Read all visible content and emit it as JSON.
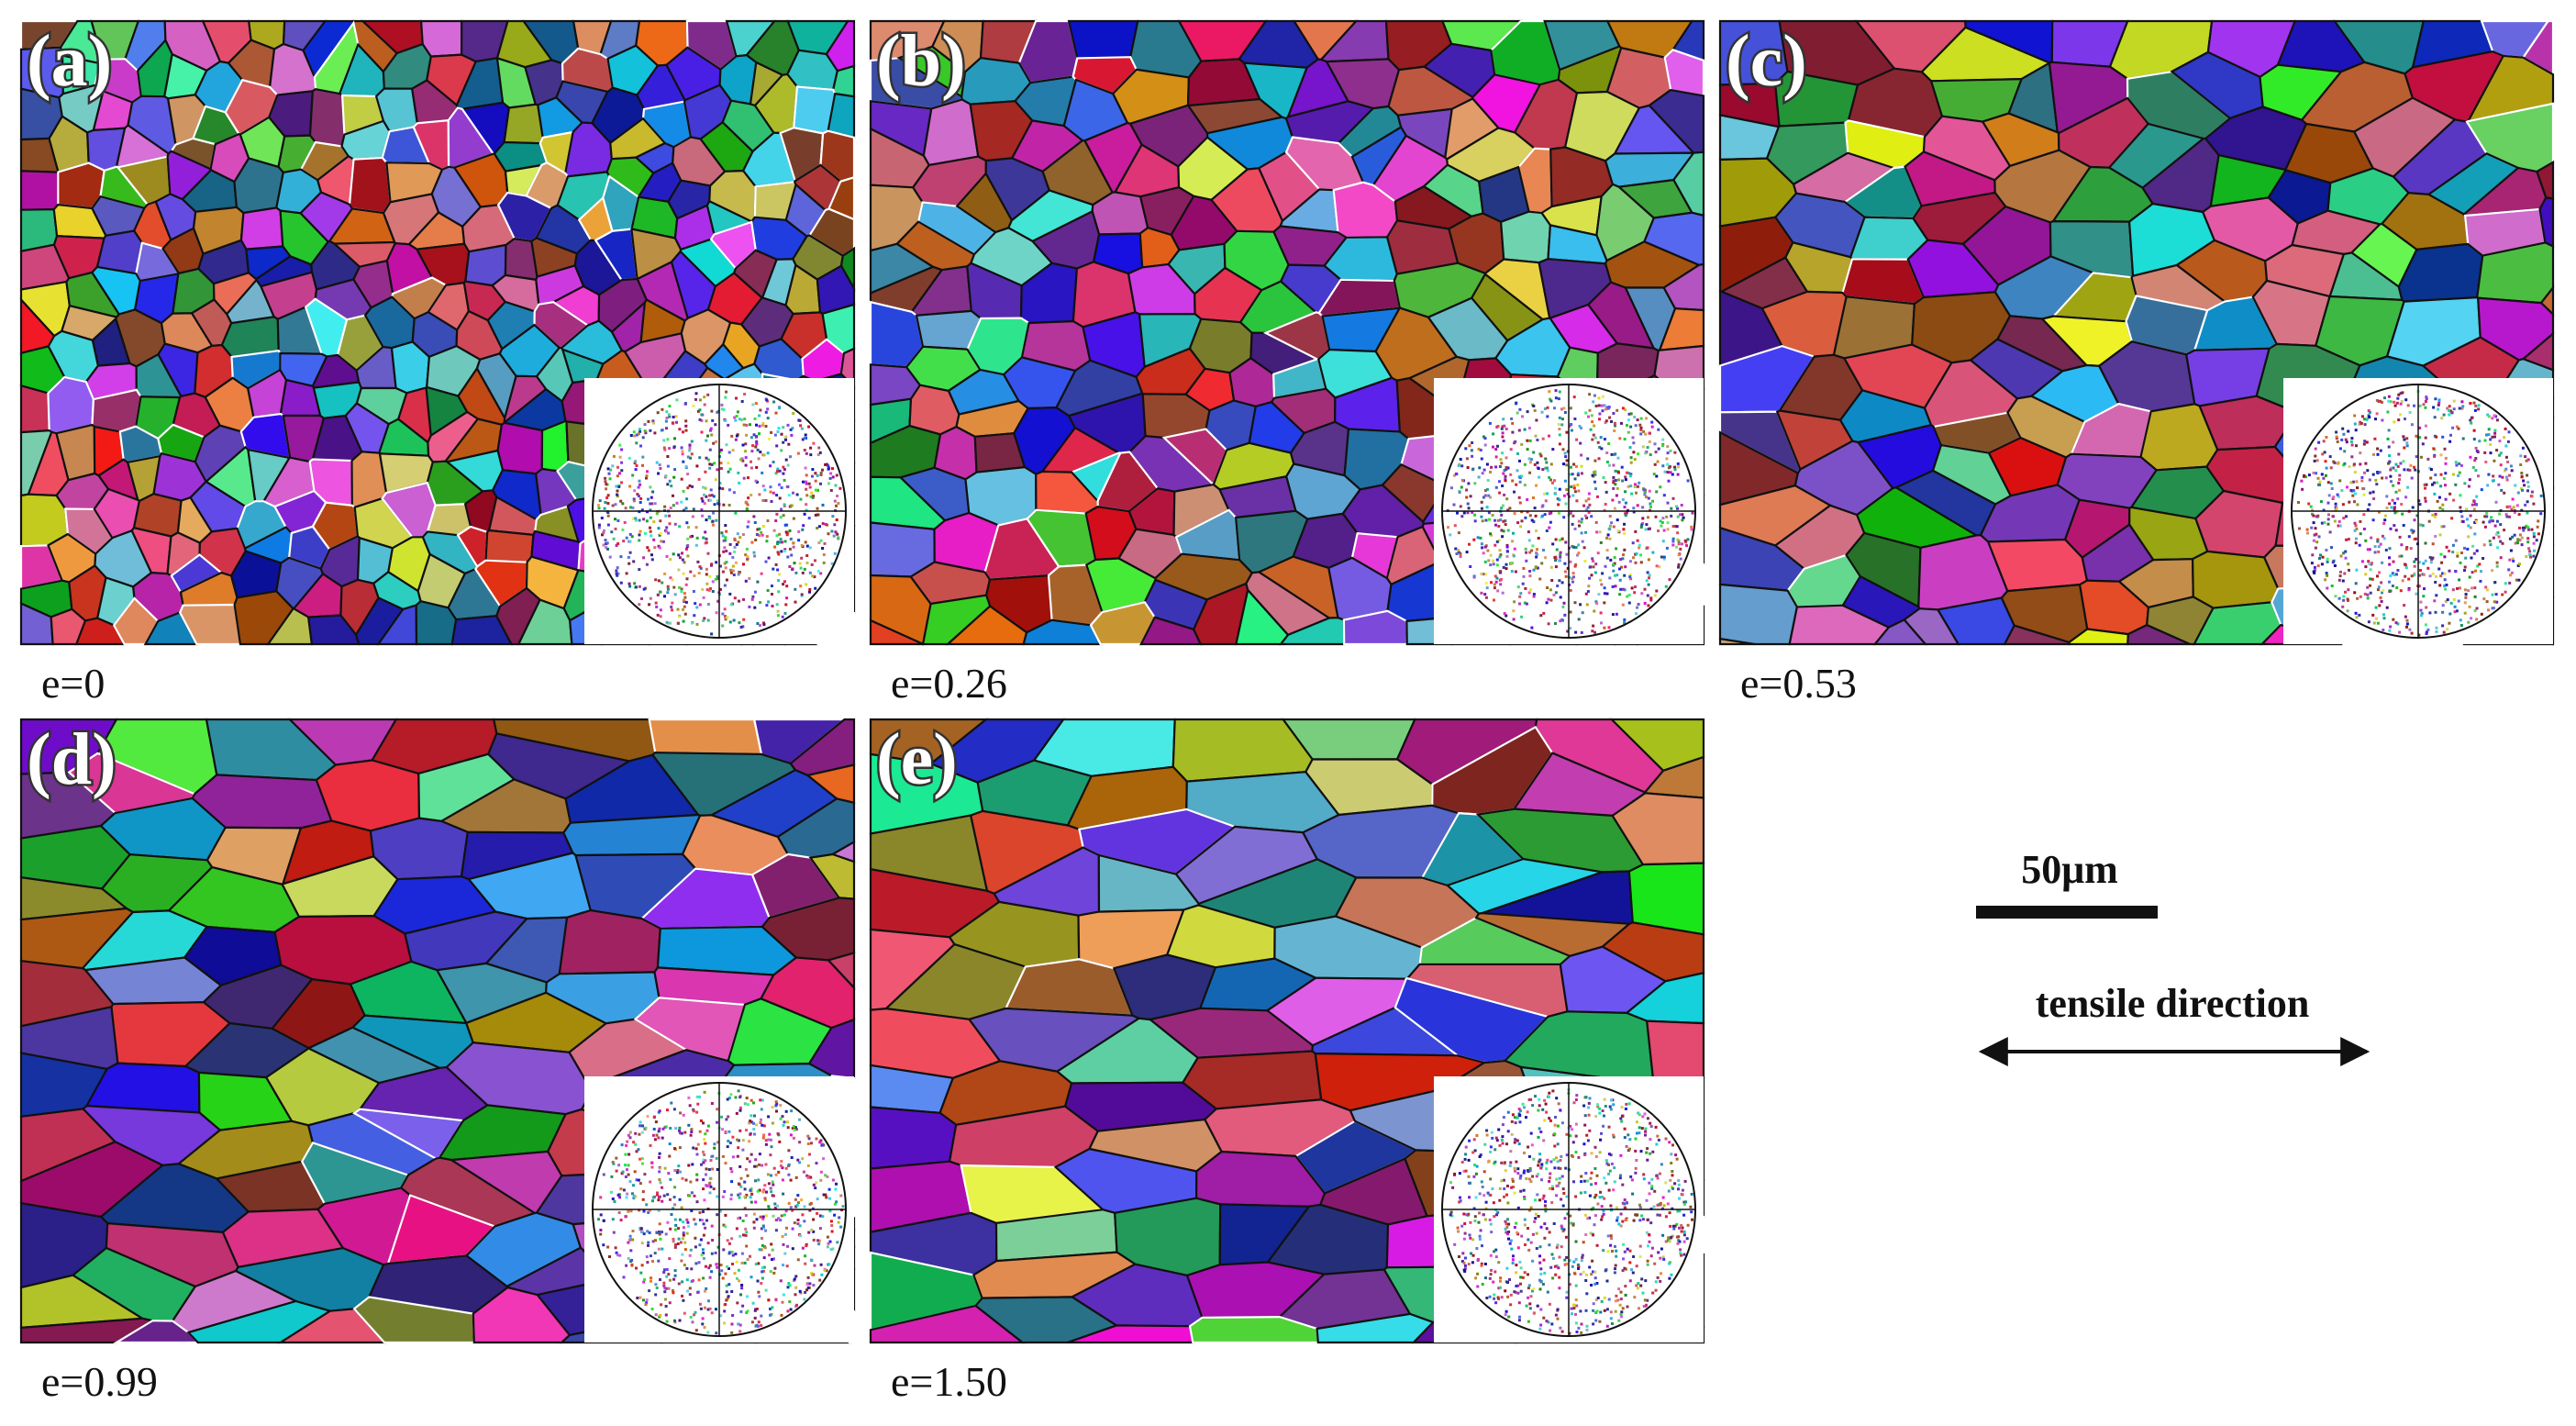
{
  "panels": [
    {
      "label": "(a)",
      "caption": "e=0"
    },
    {
      "label": "(b)",
      "caption": "e=0.26"
    },
    {
      "label": "(c)",
      "caption": "e=0.53"
    },
    {
      "label": "(d)",
      "caption": "e=0.99"
    },
    {
      "label": "(e)",
      "caption": "e=1.50"
    }
  ],
  "scale_bar": {
    "label": "50μm"
  },
  "direction": {
    "label": "tensile direction"
  }
}
